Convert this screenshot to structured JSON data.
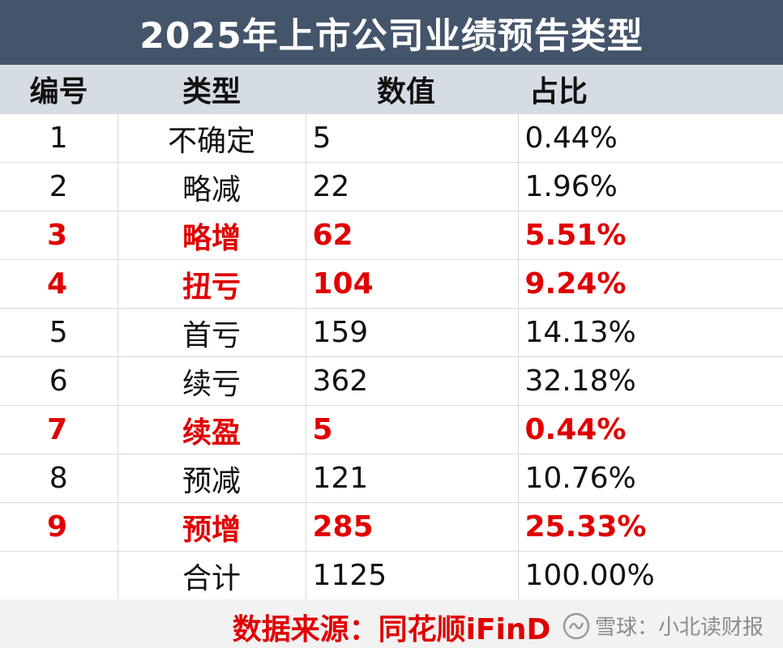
{
  "title": "2025年上市公司业绩预告类型",
  "headers": [
    "编号",
    "类型",
    "数值",
    "占比"
  ],
  "rows": [
    {
      "no": "1",
      "type": "不确定",
      "value": "5",
      "pct": "0.44%",
      "highlight": false
    },
    {
      "no": "2",
      "type": "略减",
      "value": "22",
      "pct": "1.96%",
      "highlight": false
    },
    {
      "no": "3",
      "type": "略增",
      "value": "62",
      "pct": "5.51%",
      "highlight": true
    },
    {
      "no": "4",
      "type": "扭亏",
      "value": "104",
      "pct": "9.24%",
      "highlight": true
    },
    {
      "no": "5",
      "type": "首亏",
      "value": "159",
      "pct": "14.13%",
      "highlight": false
    },
    {
      "no": "6",
      "type": "续亏",
      "value": "362",
      "pct": "32.18%",
      "highlight": false
    },
    {
      "no": "7",
      "type": "续盈",
      "value": "5",
      "pct": "0.44%",
      "highlight": true
    },
    {
      "no": "8",
      "type": "预减",
      "value": "121",
      "pct": "10.76%",
      "highlight": false
    },
    {
      "no": "9",
      "type": "预增",
      "value": "285",
      "pct": "25.33%",
      "highlight": true
    },
    {
      "no": "",
      "type": "合计",
      "value": "1125",
      "pct": "100.00%",
      "highlight": false
    }
  ],
  "footer": {
    "source": "数据来源：同花顺iFinD",
    "watermark": "雪球：小北读财报"
  },
  "colors": {
    "title_bg": "#44546a",
    "header_bg": "#d6dce4",
    "highlight": "#e00000"
  }
}
